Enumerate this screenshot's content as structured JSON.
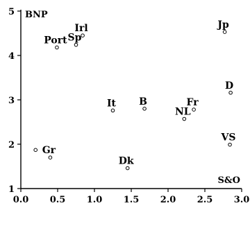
{
  "chart_data": {
    "type": "scatter",
    "title": "",
    "xlabel": "S&O",
    "ylabel": "BNP",
    "xlim": [
      0.0,
      3.0
    ],
    "ylim": [
      1,
      5
    ],
    "x_ticks": [
      0.0,
      0.5,
      1.0,
      1.5,
      2.0,
      2.5,
      3.0
    ],
    "x_tick_labels": [
      "0.0",
      "0.5",
      "1.0",
      "1.5",
      "2.0",
      "2.5",
      "3.0"
    ],
    "y_ticks": [
      1,
      2,
      3,
      4,
      5
    ],
    "y_tick_labels": [
      "1",
      "2",
      "3",
      "4",
      "5"
    ],
    "grid": false,
    "points": [
      {
        "label": "",
        "x": 0.2,
        "y": 1.87
      },
      {
        "label": "Gr",
        "x": 0.4,
        "y": 1.7
      },
      {
        "label": "Port",
        "x": 0.49,
        "y": 4.18
      },
      {
        "label": "Sp",
        "x": 0.75,
        "y": 4.24
      },
      {
        "label": "Irl",
        "x": 0.84,
        "y": 4.45
      },
      {
        "label": "It",
        "x": 1.25,
        "y": 2.76
      },
      {
        "label": "B",
        "x": 1.68,
        "y": 2.8
      },
      {
        "label": "Dk",
        "x": 1.45,
        "y": 1.46
      },
      {
        "label": "NL",
        "x": 2.22,
        "y": 2.57
      },
      {
        "label": "Fr",
        "x": 2.35,
        "y": 2.78
      },
      {
        "label": "Jp",
        "x": 2.77,
        "y": 4.53
      },
      {
        "label": "D",
        "x": 2.85,
        "y": 3.16
      },
      {
        "label": "VS",
        "x": 2.84,
        "y": 1.99
      }
    ]
  }
}
